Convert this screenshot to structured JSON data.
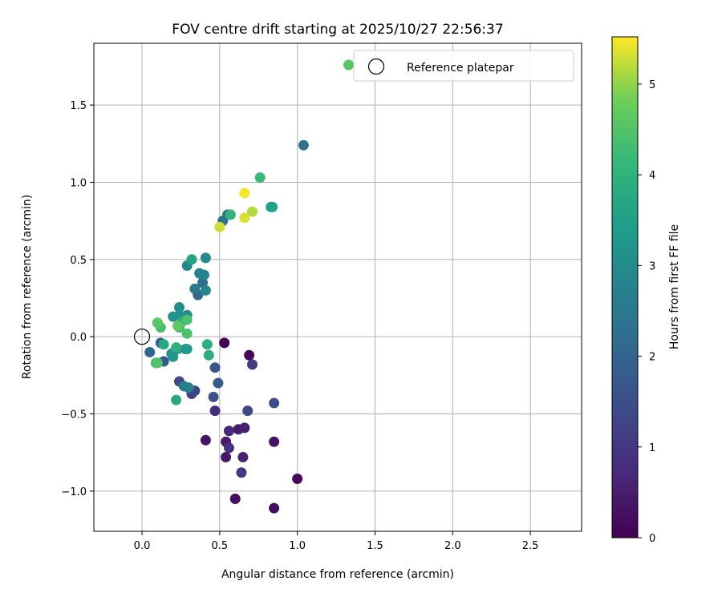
{
  "chart_data": {
    "type": "scatter",
    "title": "FOV centre drift starting at 2025/10/27 22:56:37",
    "xlabel": "Angular distance from reference (arcmin)",
    "ylabel": "Rotation from reference (arcmin)",
    "xlim": [
      -0.31,
      2.83
    ],
    "ylim": [
      -1.26,
      1.9
    ],
    "xticks": [
      0.0,
      0.5,
      1.0,
      1.5,
      2.0,
      2.5
    ],
    "xtick_labels": [
      "0.0",
      "0.5",
      "1.0",
      "1.5",
      "2.0",
      "2.5"
    ],
    "yticks": [
      -1.0,
      -0.5,
      0.0,
      0.5,
      1.0,
      1.5
    ],
    "ytick_labels": [
      "−1.0",
      "−0.5",
      "0.0",
      "0.5",
      "1.0",
      "1.5"
    ],
    "grid": true,
    "legend": {
      "position": "top-right",
      "entries": [
        "Reference platepar"
      ]
    },
    "reference_point": {
      "x": 0.0,
      "y": 0.0
    },
    "colorbar": {
      "label": "Hours from first FF file",
      "colormap": "viridis",
      "range": [
        0,
        5.52
      ],
      "ticks": [
        0,
        1,
        2,
        3,
        4,
        5
      ],
      "tick_labels": [
        "0",
        "1",
        "2",
        "3",
        "4",
        "5"
      ]
    },
    "series": [
      {
        "name": "FOV centre drift",
        "points": [
          {
            "x": 0.53,
            "y": -0.04,
            "hours": 0.05
          },
          {
            "x": 0.69,
            "y": -0.12,
            "hours": 0.1
          },
          {
            "x": 1.0,
            "y": -0.92,
            "hours": 0.15
          },
          {
            "x": 0.85,
            "y": -1.11,
            "hours": 0.2
          },
          {
            "x": 0.6,
            "y": -1.05,
            "hours": 0.25
          },
          {
            "x": 0.85,
            "y": -0.68,
            "hours": 0.3
          },
          {
            "x": 0.41,
            "y": -0.67,
            "hours": 0.35
          },
          {
            "x": 0.54,
            "y": -0.78,
            "hours": 0.4
          },
          {
            "x": 0.54,
            "y": -0.68,
            "hours": 0.45
          },
          {
            "x": 0.62,
            "y": -0.6,
            "hours": 0.5
          },
          {
            "x": 0.66,
            "y": -0.59,
            "hours": 0.55
          },
          {
            "x": 0.65,
            "y": -0.78,
            "hours": 0.6
          },
          {
            "x": 0.56,
            "y": -0.61,
            "hours": 0.7
          },
          {
            "x": 0.47,
            "y": -0.48,
            "hours": 0.8
          },
          {
            "x": 0.56,
            "y": -0.72,
            "hours": 0.9
          },
          {
            "x": 0.64,
            "y": -0.88,
            "hours": 1.05
          },
          {
            "x": 0.71,
            "y": -0.18,
            "hours": 1.15
          },
          {
            "x": 0.32,
            "y": -0.37,
            "hours": 1.25
          },
          {
            "x": 0.34,
            "y": -0.35,
            "hours": 1.3
          },
          {
            "x": 0.24,
            "y": -0.29,
            "hours": 1.35
          },
          {
            "x": 0.68,
            "y": -0.48,
            "hours": 1.4
          },
          {
            "x": 0.85,
            "y": -0.43,
            "hours": 1.5
          },
          {
            "x": 0.46,
            "y": -0.39,
            "hours": 1.55
          },
          {
            "x": 0.47,
            "y": -0.2,
            "hours": 1.6
          },
          {
            "x": 0.14,
            "y": -0.16,
            "hours": 1.7
          },
          {
            "x": 0.49,
            "y": -0.3,
            "hours": 1.8
          },
          {
            "x": 0.12,
            "y": -0.04,
            "hours": 1.9
          },
          {
            "x": 0.05,
            "y": -0.1,
            "hours": 2.0
          },
          {
            "x": 0.36,
            "y": 0.27,
            "hours": 2.1
          },
          {
            "x": 0.39,
            "y": 0.35,
            "hours": 2.2
          },
          {
            "x": 1.04,
            "y": 1.24,
            "hours": 2.3
          },
          {
            "x": 0.52,
            "y": 0.75,
            "hours": 2.35
          },
          {
            "x": 0.55,
            "y": 0.79,
            "hours": 2.45
          },
          {
            "x": 0.34,
            "y": 0.31,
            "hours": 2.5
          },
          {
            "x": 0.28,
            "y": -0.08,
            "hours": 2.55
          },
          {
            "x": 0.27,
            "y": -0.32,
            "hours": 2.6
          },
          {
            "x": 0.3,
            "y": -0.33,
            "hours": 2.7
          },
          {
            "x": 0.37,
            "y": 0.41,
            "hours": 2.75
          },
          {
            "x": 0.4,
            "y": 0.4,
            "hours": 2.8
          },
          {
            "x": 0.41,
            "y": 0.3,
            "hours": 2.85
          },
          {
            "x": 0.29,
            "y": 0.46,
            "hours": 2.9
          },
          {
            "x": 0.41,
            "y": 0.51,
            "hours": 2.95
          },
          {
            "x": 0.29,
            "y": 0.14,
            "hours": 3.0
          },
          {
            "x": 0.24,
            "y": 0.19,
            "hours": 3.05
          },
          {
            "x": 0.24,
            "y": 0.14,
            "hours": 3.1
          },
          {
            "x": 0.2,
            "y": 0.13,
            "hours": 3.15
          },
          {
            "x": 0.19,
            "y": -0.11,
            "hours": 3.2
          },
          {
            "x": 0.2,
            "y": -0.13,
            "hours": 3.25
          },
          {
            "x": 0.23,
            "y": -0.08,
            "hours": 3.3
          },
          {
            "x": 0.29,
            "y": -0.08,
            "hours": 3.35
          },
          {
            "x": 0.1,
            "y": 0.09,
            "hours": 3.45
          },
          {
            "x": 0.83,
            "y": 0.84,
            "hours": 3.5
          },
          {
            "x": 0.84,
            "y": 0.84,
            "hours": 3.55
          },
          {
            "x": 0.32,
            "y": 0.5,
            "hours": 3.65
          },
          {
            "x": 0.14,
            "y": -0.05,
            "hours": 3.7
          },
          {
            "x": 0.22,
            "y": -0.41,
            "hours": 3.75
          },
          {
            "x": 0.26,
            "y": 0.1,
            "hours": 3.8
          },
          {
            "x": 0.43,
            "y": -0.12,
            "hours": 3.85
          },
          {
            "x": 0.42,
            "y": -0.05,
            "hours": 3.9
          },
          {
            "x": 0.22,
            "y": -0.07,
            "hours": 3.95
          },
          {
            "x": 0.57,
            "y": 0.79,
            "hours": 4.0
          },
          {
            "x": 0.76,
            "y": 1.03,
            "hours": 4.2
          },
          {
            "x": 0.09,
            "y": -0.17,
            "hours": 4.25
          },
          {
            "x": 0.24,
            "y": 0.06,
            "hours": 4.3
          },
          {
            "x": 0.12,
            "y": 0.06,
            "hours": 4.35
          },
          {
            "x": 0.29,
            "y": 0.11,
            "hours": 4.4
          },
          {
            "x": 0.29,
            "y": 0.02,
            "hours": 4.45
          },
          {
            "x": 0.1,
            "y": -0.17,
            "hours": 4.5
          },
          {
            "x": 0.1,
            "y": 0.09,
            "hours": 4.6
          },
          {
            "x": 0.23,
            "y": 0.07,
            "hours": 4.65
          },
          {
            "x": 1.33,
            "y": 1.76,
            "hours": 4.55
          },
          {
            "x": 0.71,
            "y": 0.81,
            "hours": 5.15
          },
          {
            "x": 0.5,
            "y": 0.71,
            "hours": 5.3
          },
          {
            "x": 0.66,
            "y": 0.77,
            "hours": 5.35
          },
          {
            "x": 0.66,
            "y": 0.93,
            "hours": 5.5
          }
        ]
      }
    ]
  }
}
